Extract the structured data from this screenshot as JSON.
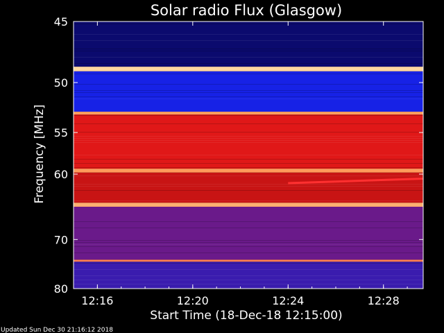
{
  "chart_data": {
    "type": "heatmap",
    "title": "Solar radio Flux (Glasgow)",
    "xlabel": "Start Time (18-Dec-18 12:15:00)",
    "ylabel": "Frequency [MHz]",
    "x_ticks": [
      "12:16",
      "12:20",
      "12:24",
      "12:28"
    ],
    "y_ticks": [
      45,
      50,
      55,
      60,
      70,
      80
    ],
    "y_scale": "reciprocal",
    "ylim": [
      45,
      80
    ],
    "xlim": [
      "12:15:00",
      "12:29:40"
    ],
    "grid": false,
    "bands": [
      {
        "from": 45,
        "to": 48.6,
        "color": "#0b0a6e"
      },
      {
        "from": 48.6,
        "to": 49.0,
        "color": "#ffd8a0"
      },
      {
        "from": 49.0,
        "to": 52.8,
        "color": "#1722e6"
      },
      {
        "from": 52.8,
        "to": 53.1,
        "color": "#ff9a5a"
      },
      {
        "from": 53.1,
        "to": 59.3,
        "color": "#e01818"
      },
      {
        "from": 59.3,
        "to": 59.8,
        "color": "#ff9a5a"
      },
      {
        "from": 59.8,
        "to": 64.0,
        "color": "#c81414"
      },
      {
        "from": 64.0,
        "to": 64.6,
        "color": "#ffb070"
      },
      {
        "from": 64.6,
        "to": 73.8,
        "color": "#6a1a8a"
      },
      {
        "from": 73.8,
        "to": 74.2,
        "color": "#ff8050"
      },
      {
        "from": 74.2,
        "to": 80.0,
        "color": "#3a1cae"
      }
    ],
    "features": [
      {
        "type": "drift",
        "start_time": "12:24:00",
        "end_time": "12:29:40",
        "freq_start": 61.2,
        "freq_end": 60.6,
        "color": "#ff3030"
      }
    ]
  },
  "footer": {
    "updated": "Updated Sun Dec 30 21:16:12 2018"
  }
}
